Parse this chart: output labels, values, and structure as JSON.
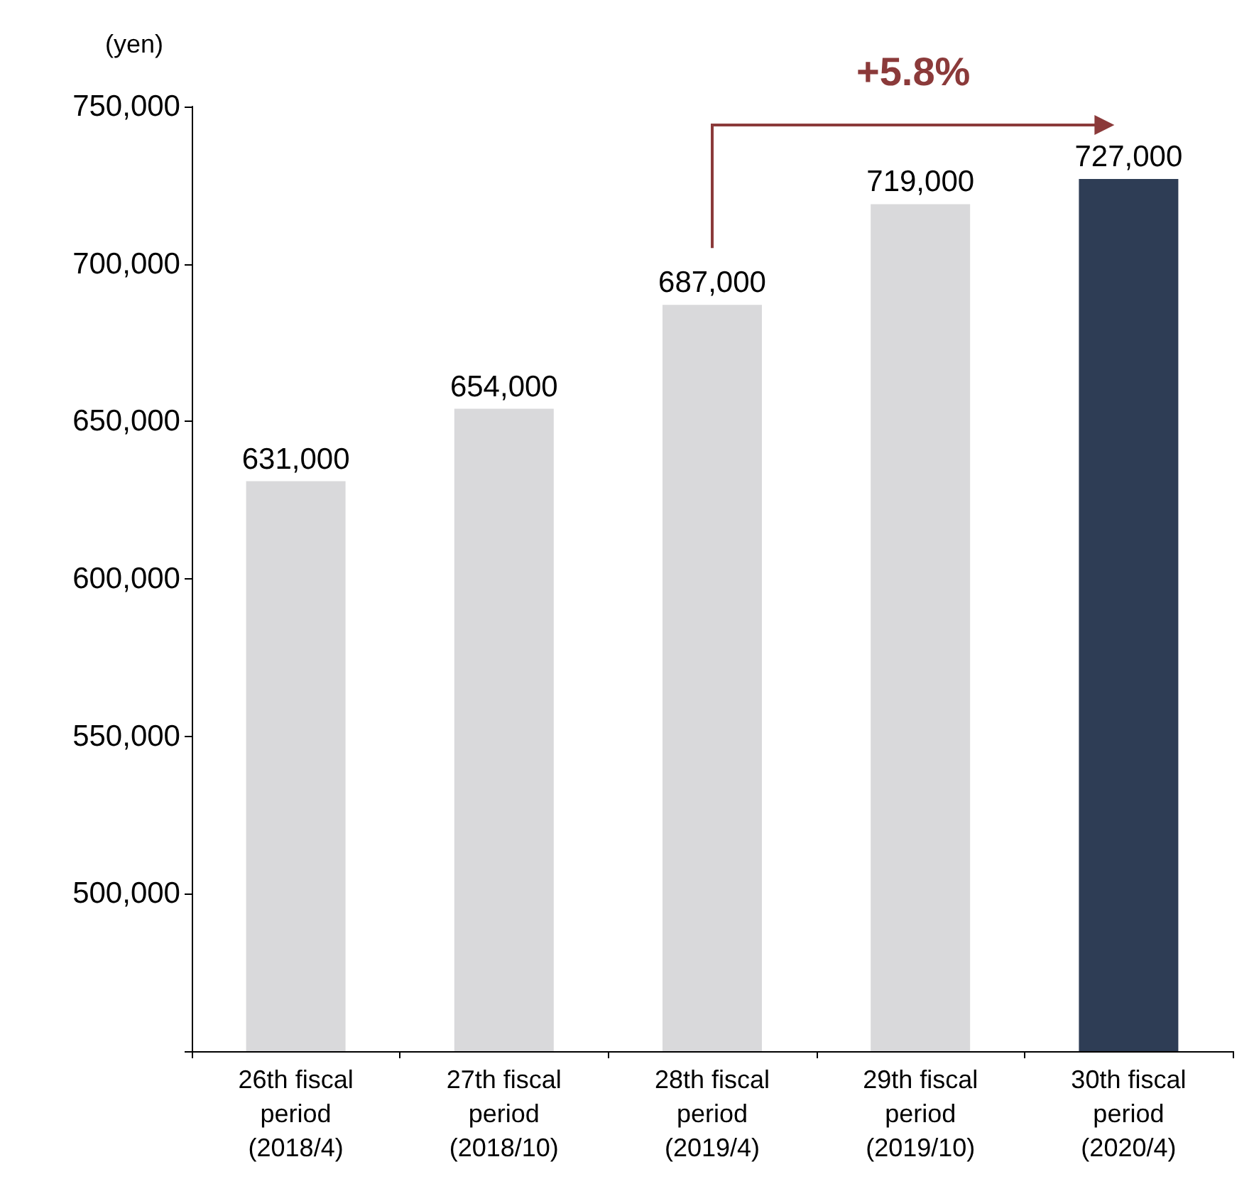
{
  "chart_data": {
    "type": "bar",
    "ylabel": "(yen)",
    "categories": [
      "26th fiscal\nperiod\n(2018/4)",
      "27th fiscal\nperiod\n(2018/10)",
      "28th fiscal\nperiod\n(2019/4)",
      "29th fiscal\nperiod\n(2019/10)",
      "30th fiscal\nperiod\n(2020/4)"
    ],
    "values": [
      631000,
      654000,
      687000,
      719000,
      727000
    ],
    "colors": [
      "#d9d9db",
      "#d9d9db",
      "#d9d9db",
      "#d9d9db",
      "#2e3d55"
    ],
    "value_labels": [
      "631,000",
      "654,000",
      "687,000",
      "719,000",
      "727,000"
    ],
    "ylim": [
      450000,
      750000
    ],
    "yticks": [
      {
        "value": 450000,
        "label": null
      },
      {
        "value": 500000,
        "label": "500,000"
      },
      {
        "value": 550000,
        "label": "550,000"
      },
      {
        "value": 600000,
        "label": "600,000"
      },
      {
        "value": 650000,
        "label": "650,000"
      },
      {
        "value": 700000,
        "label": "700,000"
      },
      {
        "value": 750000,
        "label": "750,000"
      }
    ],
    "annotations": [
      "+5.8%"
    ]
  }
}
